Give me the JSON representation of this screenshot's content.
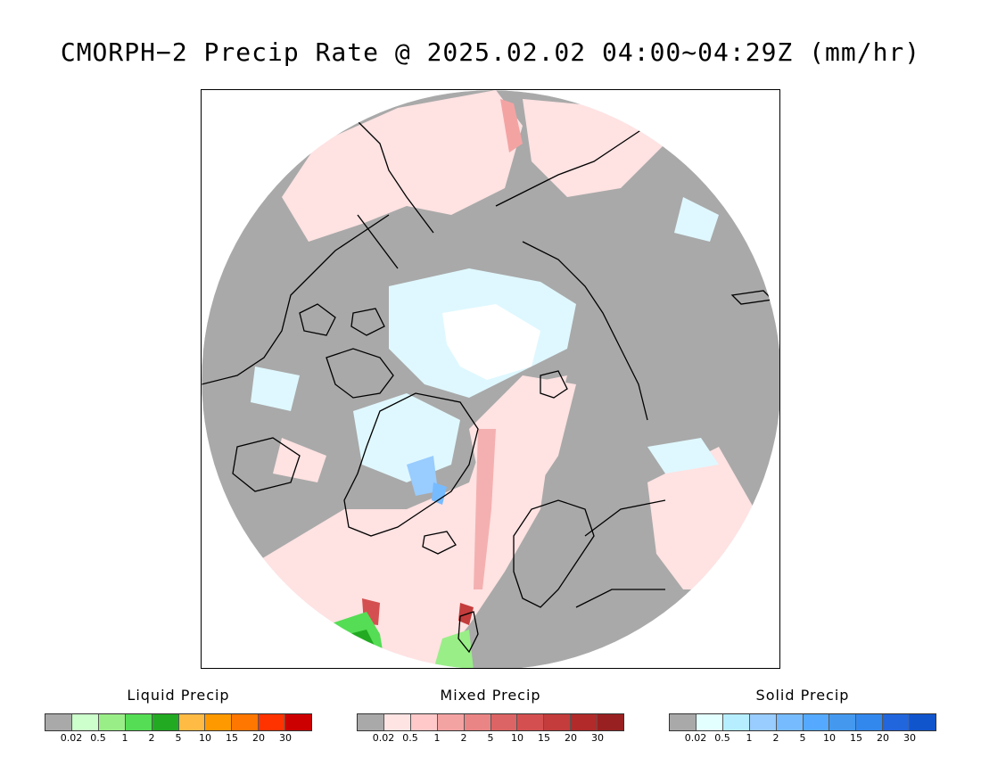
{
  "title": "CMORPH−2 Precip Rate @ 2025.02.02 04:00~04:29Z (mm/hr)",
  "map": {
    "projection": "north polar stereographic",
    "colors": {
      "no_precip": "#a9a9a9",
      "land_outline": "#000000",
      "sea_ice_center": "#ffffff"
    }
  },
  "legends": [
    {
      "title": "Liquid Precip",
      "colors": [
        "#a9a9a9",
        "#ccffcc",
        "#99ee88",
        "#55dd55",
        "#22aa22",
        "#ffbb44",
        "#ff9900",
        "#ff7700",
        "#ff3300",
        "#cc0000"
      ],
      "ticks": [
        "0.02",
        "0.5",
        "1",
        "2",
        "5",
        "10",
        "15",
        "20",
        "30"
      ]
    },
    {
      "title": "Mixed Precip",
      "colors": [
        "#a9a9a9",
        "#ffe4e4",
        "#ffc9c9",
        "#f4a3a3",
        "#ea8585",
        "#dd6464",
        "#d45050",
        "#c43c3c",
        "#b22a2a",
        "#992020"
      ],
      "ticks": [
        "0.02",
        "0.5",
        "1",
        "2",
        "5",
        "10",
        "15",
        "20",
        "30"
      ]
    },
    {
      "title": "Solid Precip",
      "colors": [
        "#a9a9a9",
        "#e4ffff",
        "#b6eeff",
        "#99ccff",
        "#77bbff",
        "#55aaff",
        "#4499ee",
        "#3388ee",
        "#2266dd",
        "#1155cc"
      ],
      "ticks": [
        "0.02",
        "0.5",
        "1",
        "2",
        "5",
        "10",
        "15",
        "20",
        "30"
      ]
    }
  ]
}
